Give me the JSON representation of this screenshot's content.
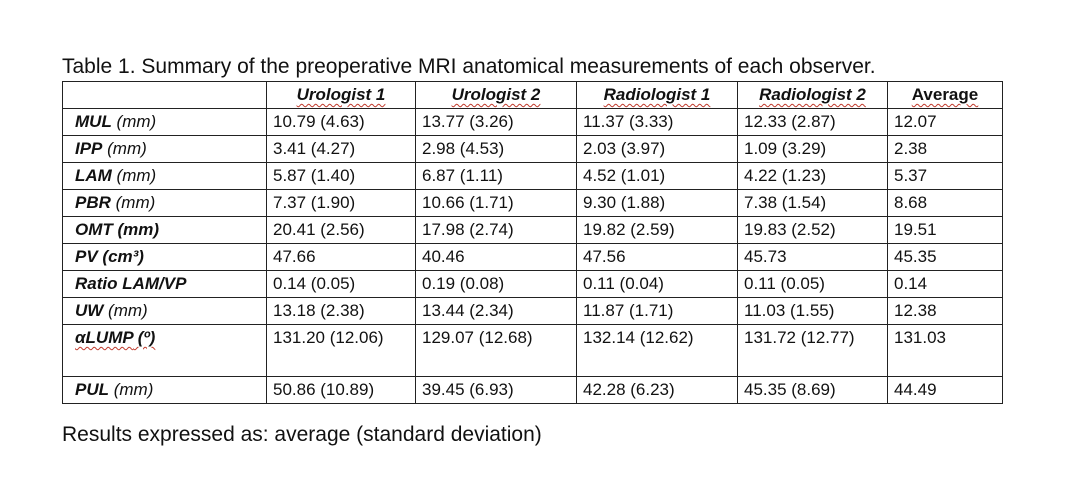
{
  "caption": "Table 1. Summary of the preoperative MRI anatomical measurements of each observer.",
  "footnote": "Results expressed as: average (standard deviation)",
  "table": {
    "headers": [
      "",
      "Urologist 1",
      "Urologist 2",
      "Radiologist 1",
      "Radiologist 2",
      "Average"
    ],
    "rows": [
      {
        "label": "MUL",
        "unit": " (mm)",
        "unit_bold": false,
        "cells": [
          "10.79 (4.63)",
          "13.77 (3.26)",
          "11.37 (3.33)",
          "12.33 (2.87)",
          "12.07"
        ]
      },
      {
        "label": "IPP",
        "unit": " (mm)",
        "unit_bold": false,
        "cells": [
          "3.41 (4.27)",
          "2.98 (4.53)",
          "2.03 (3.97)",
          "1.09 (3.29)",
          "2.38"
        ]
      },
      {
        "label": "LAM",
        "unit": " (mm)",
        "unit_bold": false,
        "cells": [
          "5.87 (1.40)",
          "6.87 (1.11)",
          "4.52 (1.01)",
          "4.22 (1.23)",
          "5.37"
        ]
      },
      {
        "label": "PBR",
        "unit": " (mm)",
        "unit_bold": false,
        "cells": [
          "7.37 (1.90)",
          "10.66 (1.71)",
          "9.30 (1.88)",
          "7.38 (1.54)",
          "8.68"
        ]
      },
      {
        "label": "OMT",
        "unit": " (mm)",
        "unit_bold": true,
        "cells": [
          "20.41 (2.56)",
          "17.98 (2.74)",
          "19.82 (2.59)",
          "19.83 (2.52)",
          "19.51"
        ]
      },
      {
        "label": "PV",
        "unit": " (cm³)",
        "unit_bold": true,
        "cells": [
          "47.66",
          "40.46",
          "47.56",
          "45.73",
          "45.35"
        ]
      },
      {
        "label": "Ratio LAM/VP",
        "unit": "",
        "unit_bold": true,
        "cells": [
          "0.14 (0.05)",
          "0.19 (0.08)",
          "0.11 (0.04)",
          "0.11 (0.05)",
          "0.14"
        ]
      },
      {
        "label": "UW",
        "unit": " (mm)",
        "unit_bold": false,
        "cells": [
          "13.18 (2.38)",
          "13.44 (2.34)",
          "11.87 (1.71)",
          "11.03 (1.55)",
          "12.38"
        ]
      },
      {
        "label": "αLUMP",
        "unit": " (º)",
        "unit_bold": true,
        "cells": [
          "131.20 (12.06)",
          "129.07 (12.68)",
          "132.14 (12.62)",
          "131.72 (12.77)",
          "131.03"
        ]
      },
      {
        "label": "PUL",
        "unit": " (mm)",
        "unit_bold": false,
        "cells": [
          "50.86 (10.89)",
          "39.45 (6.93)",
          "42.28 (6.23)",
          "45.35 (8.69)",
          "44.49"
        ]
      }
    ]
  }
}
